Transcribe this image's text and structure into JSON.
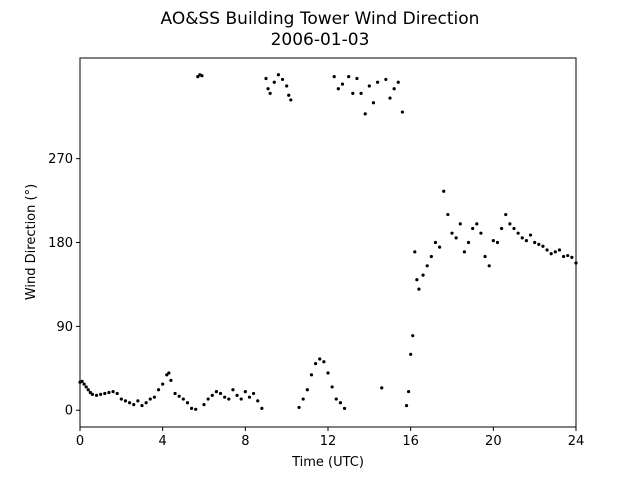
{
  "chart_data": {
    "type": "scatter",
    "title": "AO&SS Building Tower Wind Direction",
    "subtitle": "2006-01-03",
    "x_label": "Time (UTC)",
    "y_label": "Wind Direction (°)",
    "color": "#000000",
    "xlim": [
      0,
      24
    ],
    "xticks": [
      0,
      4,
      8,
      12,
      16,
      20,
      24
    ],
    "ylim": [
      -18,
      378
    ],
    "yticks": [
      0,
      90,
      180,
      270
    ],
    "x": [
      0,
      0.1,
      0.2,
      0.3,
      0.4,
      0.5,
      0.6,
      0.8,
      1.0,
      1.2,
      1.4,
      1.6,
      1.8,
      2.0,
      2.2,
      2.4,
      2.6,
      2.8,
      3.0,
      3.2,
      3.4,
      3.6,
      3.8,
      4.0,
      4.2,
      4.3,
      4.4,
      4.6,
      4.8,
      5.0,
      5.2,
      5.4,
      5.6,
      5.7,
      5.8,
      5.9,
      6.0,
      6.2,
      6.4,
      6.6,
      6.8,
      7.0,
      7.2,
      7.4,
      7.6,
      7.8,
      8.0,
      8.2,
      8.4,
      8.6,
      8.8,
      9.0,
      9.1,
      9.2,
      9.4,
      9.6,
      9.8,
      10.0,
      10.1,
      10.2,
      10.6,
      10.8,
      11.0,
      11.2,
      11.4,
      11.6,
      11.8,
      12.0,
      12.2,
      12.4,
      12.6,
      12.8,
      12.3,
      12.5,
      12.7,
      13.0,
      13.2,
      13.4,
      13.6,
      13.8,
      14.0,
      14.2,
      14.4,
      14.6,
      14.8,
      15.0,
      15.2,
      15.4,
      15.6,
      15.8,
      15.9,
      16.0,
      16.1,
      16.2,
      16.3,
      16.4,
      16.6,
      16.8,
      17.0,
      17.2,
      17.4,
      17.6,
      17.8,
      18.0,
      18.2,
      18.4,
      18.6,
      18.8,
      19.0,
      19.2,
      19.4,
      19.6,
      19.8,
      20.0,
      20.2,
      20.4,
      20.6,
      20.8,
      21.0,
      21.2,
      21.4,
      21.6,
      21.8,
      22.0,
      22.2,
      22.4,
      22.6,
      22.8,
      23.0,
      23.2,
      23.4,
      23.6,
      23.8,
      24.0
    ],
    "values": [
      30,
      31,
      28,
      25,
      22,
      19,
      17,
      16,
      17,
      18,
      19,
      20,
      18,
      12,
      10,
      8,
      6,
      10,
      5,
      8,
      12,
      14,
      22,
      28,
      38,
      40,
      32,
      18,
      15,
      12,
      8,
      2,
      1,
      358,
      360,
      359,
      6,
      12,
      16,
      20,
      18,
      14,
      12,
      22,
      16,
      12,
      20,
      14,
      18,
      10,
      2,
      356,
      345,
      340,
      352,
      360,
      355,
      348,
      338,
      333,
      3,
      12,
      22,
      38,
      50,
      55,
      52,
      40,
      25,
      12,
      8,
      2,
      358,
      345,
      350,
      358,
      340,
      356,
      340,
      318,
      348,
      330,
      352,
      24,
      355,
      335,
      345,
      352,
      320,
      5,
      20,
      60,
      80,
      170,
      140,
      130,
      145,
      155,
      165,
      180,
      175,
      235,
      210,
      190,
      185,
      200,
      170,
      180,
      195,
      200,
      190,
      165,
      155,
      182,
      180,
      195,
      210,
      200,
      195,
      190,
      185,
      182,
      188,
      180,
      178,
      176,
      172,
      168,
      170,
      172,
      165,
      166,
      164,
      158
    ]
  }
}
